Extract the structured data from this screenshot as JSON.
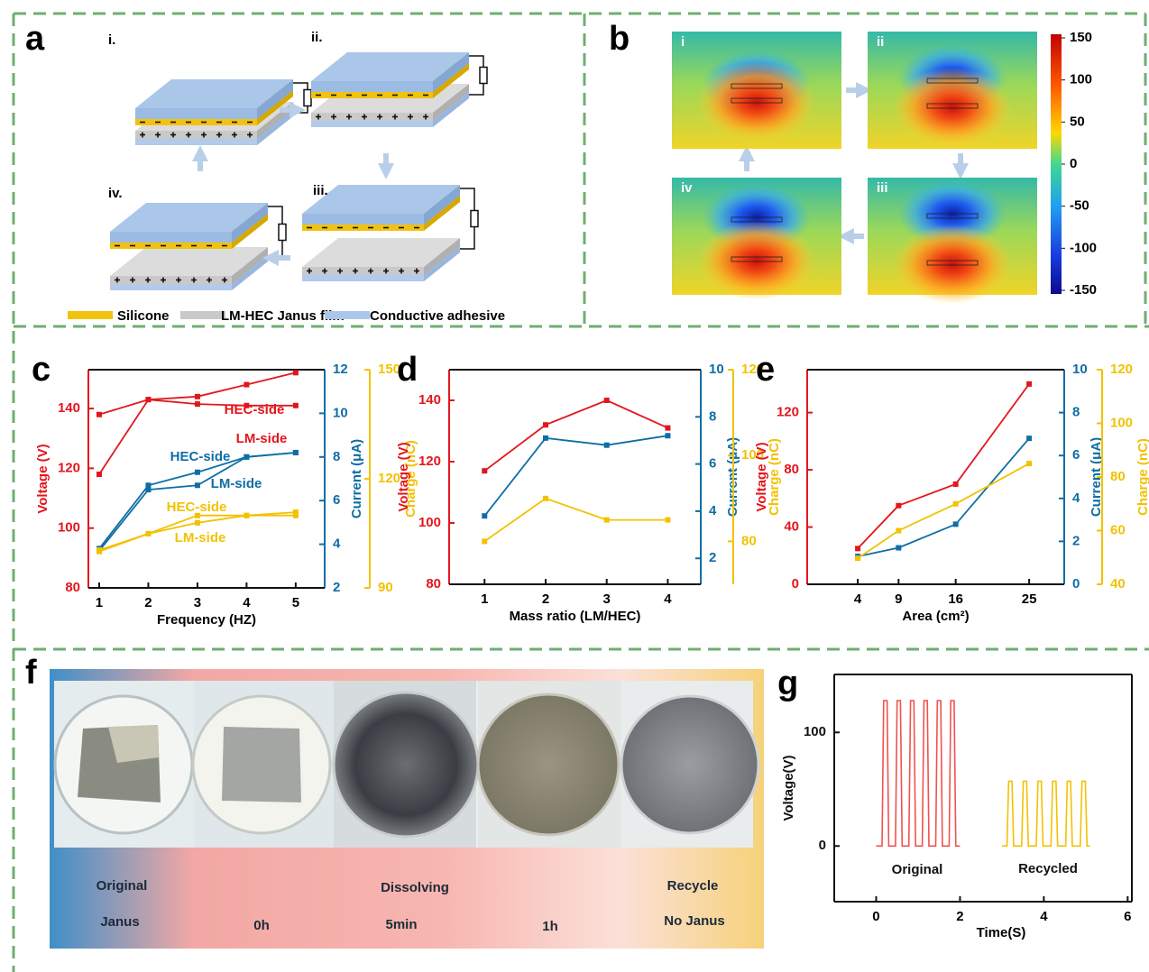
{
  "figure": {
    "a": {
      "label": "a",
      "steps": [
        "i.",
        "ii.",
        "iii.",
        "iv."
      ],
      "legend": [
        "Silicone",
        "LM-HEC Janus film",
        "Conductive adhesive"
      ]
    },
    "b": {
      "label": "b",
      "steps": [
        "i",
        "ii",
        "iii",
        "iv"
      ],
      "colorbar": {
        "lim": [
          -150,
          150
        ],
        "ticks": [
          150,
          100,
          50,
          0,
          -50,
          -100,
          -150
        ]
      }
    },
    "f": {
      "label": "f",
      "texts": [
        "Original",
        "Janus",
        "0h",
        "Dissolving",
        "5min",
        "1h",
        "Recycle",
        "No Janus"
      ]
    }
  },
  "chart_data": [
    {
      "type": "line",
      "panel": "c",
      "markers": true,
      "xlabel": "Frequency (HZ)",
      "ylabel": "Voltage (V)",
      "y2label": "Current (μA)",
      "y3label": "Charge (nC)",
      "x": [
        1,
        2,
        3,
        4,
        5
      ],
      "xlim": [
        0.78,
        5.59
      ],
      "xticks": [
        1,
        2,
        3,
        4,
        5
      ],
      "ylim": [
        80,
        153
      ],
      "yticks": [
        80,
        100,
        120,
        140
      ],
      "y2lim": [
        2,
        12
      ],
      "y2ticks": [
        2,
        4,
        6,
        8,
        10,
        12
      ],
      "y3lim": [
        90,
        150
      ],
      "y3ticks": [
        90,
        120,
        150
      ],
      "series": [
        {
          "name": "HEC-side",
          "color": "#e3161d",
          "axis": "y",
          "values": [
            118,
            143,
            144,
            148,
            152
          ]
        },
        {
          "name": "LM-side",
          "color": "#e3161d",
          "axis": "y",
          "values": [
            138,
            143,
            141.5,
            141,
            141
          ]
        },
        {
          "name": "HEC-side",
          "color": "#0e6ea5",
          "axis": "y2",
          "values": [
            3.8,
            6.7,
            7.3,
            8.0,
            8.2
          ]
        },
        {
          "name": "LM-side",
          "color": "#0e6ea5",
          "axis": "y2",
          "values": [
            3.7,
            6.5,
            6.7,
            8.0,
            8.2
          ]
        },
        {
          "name": "HEC-side",
          "color": "#f2c200",
          "axis": "y3",
          "values": [
            100.4,
            104.9,
            109.9,
            109.9,
            110.8
          ]
        },
        {
          "name": "LM-side",
          "color": "#f2c200",
          "axis": "y3",
          "values": [
            100,
            104.9,
            107.9,
            109.9,
            109.9
          ]
        }
      ]
    },
    {
      "type": "line",
      "panel": "d",
      "markers": true,
      "xlabel": "Mass ratio (LM/HEC)",
      "ylabel": "Voltage (V)",
      "y2label": "Current (μA)",
      "y3label": "Charge (nC)",
      "x": [
        1,
        2,
        3,
        4
      ],
      "xlim": [
        0.42,
        4.54
      ],
      "xticks": [
        1,
        2,
        3,
        4
      ],
      "ylim": [
        80,
        150
      ],
      "yticks": [
        80,
        100,
        120,
        140
      ],
      "y2lim": [
        0.9,
        10
      ],
      "y2ticks": [
        2,
        4,
        6,
        8,
        10
      ],
      "y3lim": [
        70,
        120
      ],
      "y3ticks": [
        80,
        100,
        120
      ],
      "series": [
        {
          "color": "#e3161d",
          "axis": "y",
          "values": [
            117,
            132,
            140,
            131
          ]
        },
        {
          "color": "#0e6ea5",
          "axis": "y2",
          "values": [
            3.8,
            7.1,
            6.8,
            7.2
          ]
        },
        {
          "color": "#f2c200",
          "axis": "y3",
          "values": [
            80,
            90,
            85,
            85
          ]
        }
      ]
    },
    {
      "type": "line",
      "panel": "e",
      "markers": true,
      "xlabel": "Area (cm²)",
      "ylabel": "Voltage (V)",
      "y2label": "Current (μA)",
      "y3label": "Charge (nC)",
      "x": [
        4,
        9,
        16,
        25
      ],
      "xlim": [
        -2.2,
        29.3
      ],
      "xticks": [
        4,
        9,
        16,
        25
      ],
      "ylim": [
        0,
        150
      ],
      "yticks": [
        0,
        40,
        80,
        120
      ],
      "y2lim": [
        0,
        10
      ],
      "y2ticks": [
        0,
        2,
        4,
        6,
        8,
        10
      ],
      "y3lim": [
        40,
        120
      ],
      "y3ticks": [
        40,
        60,
        80,
        100,
        120
      ],
      "series": [
        {
          "color": "#e3161d",
          "axis": "y",
          "values": [
            25,
            55,
            70,
            140
          ]
        },
        {
          "color": "#0e6ea5",
          "axis": "y2",
          "values": [
            1.3,
            1.7,
            2.8,
            6.8
          ]
        },
        {
          "color": "#f2c200",
          "axis": "y3",
          "values": [
            49.7,
            60,
            70,
            85
          ]
        }
      ]
    },
    {
      "type": "line",
      "panel": "g",
      "xlabel": "Time(S)",
      "ylabel": "Voltage(V)",
      "xlim": [
        -1,
        6.1
      ],
      "xticks": [
        0,
        2,
        4,
        6
      ],
      "ylim": [
        -49,
        151
      ],
      "yticks": [
        0,
        100
      ],
      "series": [
        {
          "name": "Original",
          "color": "#f0524f",
          "x": [
            0,
            0.14,
            0.18,
            0.26,
            0.3,
            0.46,
            0.5,
            0.58,
            0.62,
            0.78,
            0.82,
            0.9,
            0.94,
            1.1,
            1.14,
            1.22,
            1.26,
            1.42,
            1.46,
            1.54,
            1.58,
            1.74,
            1.78,
            1.86,
            1.9,
            2
          ],
          "values": [
            0,
            0,
            128,
            128,
            0,
            0,
            128,
            128,
            0,
            0,
            128,
            128,
            0,
            0,
            128,
            128,
            0,
            0,
            128,
            128,
            0,
            0,
            128,
            128,
            0,
            0
          ]
        },
        {
          "name": "Recycled",
          "color": "#f2c200",
          "x": [
            3,
            3.12,
            3.16,
            3.24,
            3.28,
            3.47,
            3.51,
            3.59,
            3.63,
            3.82,
            3.86,
            3.94,
            3.98,
            4.17,
            4.21,
            4.29,
            4.33,
            4.52,
            4.56,
            4.64,
            4.68,
            4.87,
            4.91,
            4.99,
            5.03,
            5.1
          ],
          "values": [
            0,
            0,
            57,
            57,
            0,
            0,
            57,
            57,
            0,
            0,
            57,
            57,
            0,
            0,
            57,
            57,
            0,
            0,
            57,
            57,
            0,
            0,
            57,
            57,
            0,
            0
          ]
        }
      ]
    }
  ]
}
